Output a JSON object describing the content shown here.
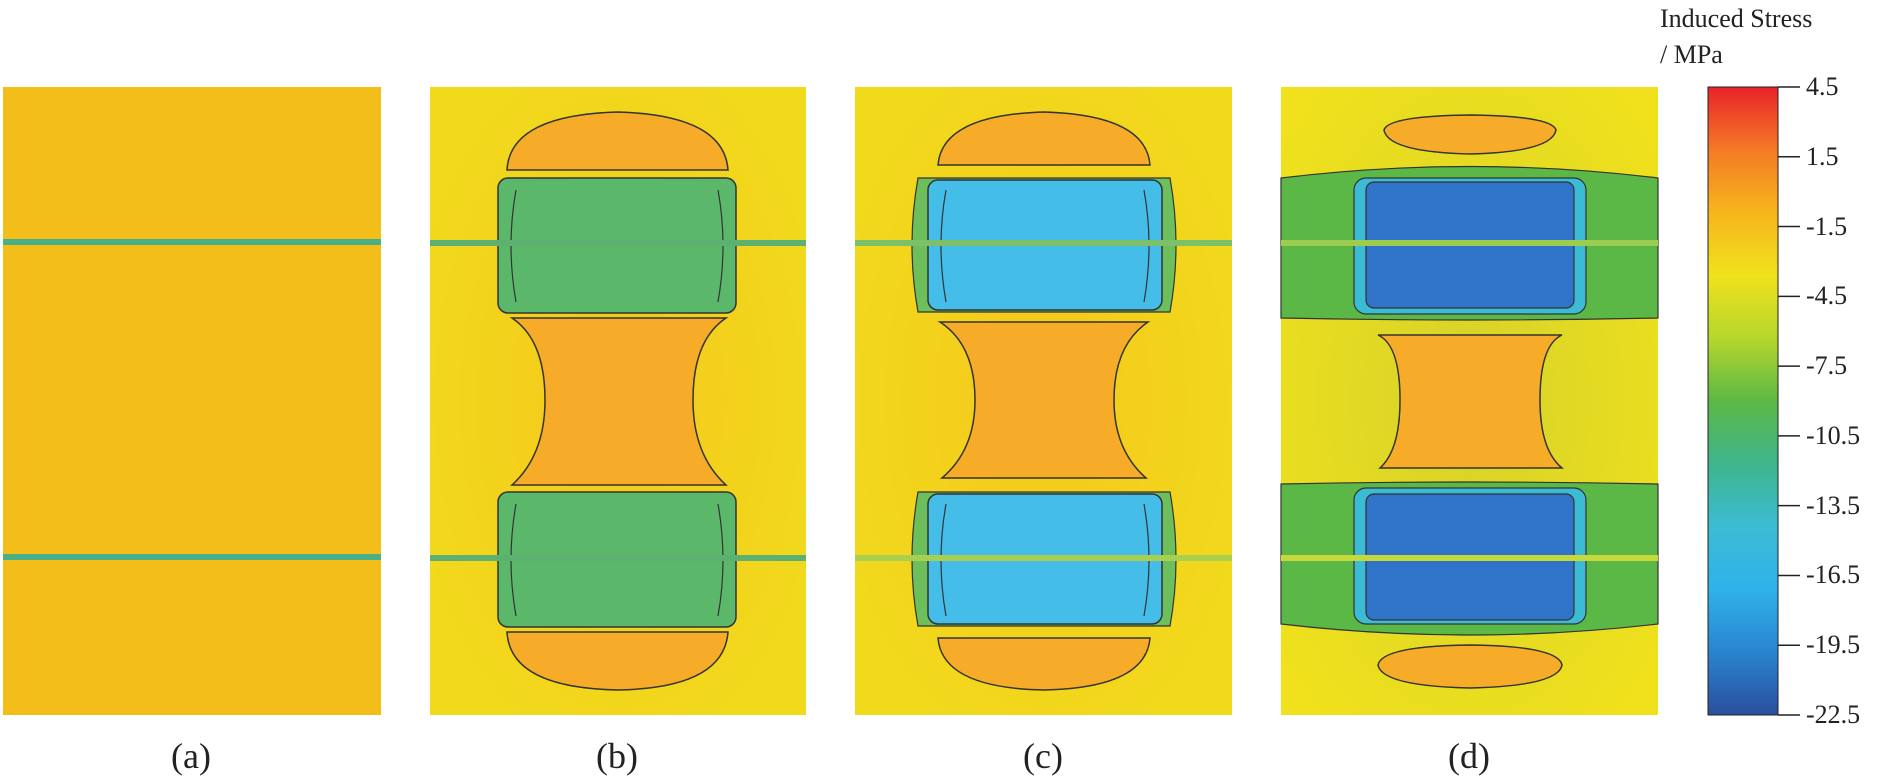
{
  "panels": [
    {
      "label": "(a)"
    },
    {
      "label": "(b)"
    },
    {
      "label": "(c)"
    },
    {
      "label": "(d)"
    }
  ],
  "colorbar": {
    "title_line1": "Induced Stress",
    "title_line2": "/ MPa",
    "ticks": [
      "4.5",
      "1.5",
      "-1.5",
      "-4.5",
      "-7.5",
      "-10.5",
      "-13.5",
      "-16.5",
      "-19.5",
      "-22.5"
    ],
    "gradient_colors": [
      "#e8232a",
      "#f47a26",
      "#f6b51c",
      "#f0e21c",
      "#b6d62c",
      "#5cb846",
      "#3eb58c",
      "#3cbcd4",
      "#2fb2ea",
      "#2a84cf",
      "#2a4f9e"
    ]
  },
  "colors": {
    "uniform_field": "#f3be1a",
    "yellow_field": "#f3d21a",
    "orange_region": "#f6a928",
    "green_band": "#3fae7a",
    "green_block": "#5bb86a",
    "cyan_block": "#45bde9",
    "blue_block": "#2f74c8",
    "contour_line": "#333333"
  }
}
